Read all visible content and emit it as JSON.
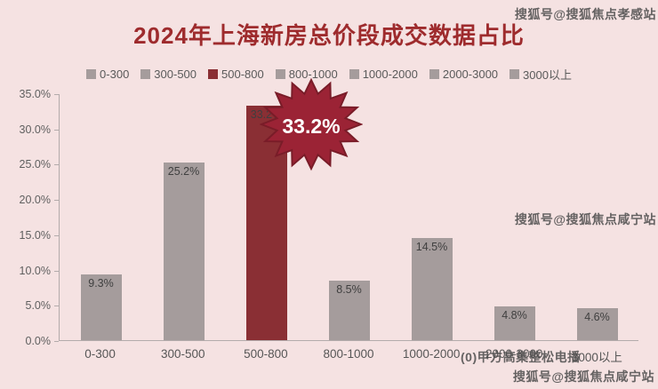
{
  "title": "2024年上海新房总价段成交数据占比",
  "colors": {
    "background": "#f5e2e2",
    "title": "#9e2b2d",
    "bar": "#a59c9c",
    "bar_highlight": "#8a2f34",
    "badge": "#9b2335",
    "badge_stroke": "#791c28",
    "badge_text": "#ffffff",
    "axis_text": "#5f5f5f",
    "label_text": "#3f3f3f"
  },
  "legend": [
    {
      "label": "0-300",
      "color": "#a59c9c"
    },
    {
      "label": "300-500",
      "color": "#a59c9c"
    },
    {
      "label": "500-800",
      "color": "#8a2f34"
    },
    {
      "label": "800-1000",
      "color": "#a59c9c"
    },
    {
      "label": "1000-2000",
      "color": "#a59c9c"
    },
    {
      "label": "2000-3000",
      "color": "#a59c9c"
    },
    {
      "label": "3000以上",
      "color": "#a59c9c"
    }
  ],
  "chart_data": {
    "type": "bar",
    "title": "2024年上海新房总价段成交数据占比",
    "categories": [
      "0-300",
      "300-500",
      "500-800",
      "800-1000",
      "1000-2000",
      "2000-3000",
      "3000以上"
    ],
    "values": [
      9.3,
      25.2,
      33.2,
      8.5,
      14.5,
      4.8,
      4.6
    ],
    "labels": [
      "9.3%",
      "25.2%",
      "33.2%",
      "8.5%",
      "14.5%",
      "4.8%",
      "4.6%"
    ],
    "highlight_index": 2,
    "xlabel": "",
    "ylabel": "",
    "ylim": [
      0,
      35
    ],
    "yticks": [
      "35.0%",
      "30.0%",
      "25.0%",
      "20.0%",
      "15.0%",
      "10.0%",
      "5.0%",
      "0.0%"
    ],
    "legend_position": "top",
    "grid": false
  },
  "badge": {
    "text": "33.2%"
  },
  "watermarks": {
    "top_right": "搜狐号@搜狐焦点孝感站",
    "mid_right": "搜狐号@搜狐焦点咸宁站",
    "bottom_axis": "(0)甲方高集整松电播",
    "bottom_right": "搜狐号@搜狐焦点咸宁站"
  }
}
